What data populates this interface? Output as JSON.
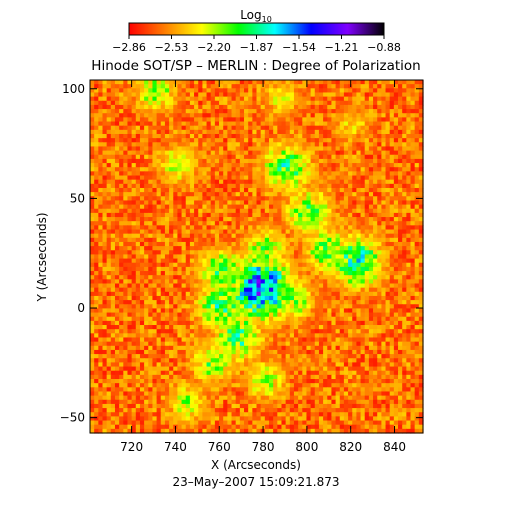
{
  "chart_data": {
    "type": "heatmap",
    "title": "Hinode SOT/SP – MERLIN : Degree of Polarization",
    "xlabel": "X (Arcseconds)",
    "ylabel": "Y (Arcseconds)",
    "timestamp": "23–May–2007 15:09:21.873",
    "xlim": [
      701,
      853
    ],
    "ylim": [
      -57,
      104
    ],
    "x_ticks": [
      {
        "value": 720,
        "label": "720"
      },
      {
        "value": 740,
        "label": "740"
      },
      {
        "value": 760,
        "label": "760"
      },
      {
        "value": 780,
        "label": "780"
      },
      {
        "value": 800,
        "label": "800"
      },
      {
        "value": 820,
        "label": "820"
      },
      {
        "value": 840,
        "label": "840"
      }
    ],
    "y_ticks": [
      {
        "value": -50,
        "label": "−50"
      },
      {
        "value": 0,
        "label": "0"
      },
      {
        "value": 50,
        "label": "50"
      },
      {
        "value": 100,
        "label": "100"
      }
    ],
    "colorbar": {
      "title_main": "Log",
      "title_sub": "10",
      "range": [
        -2.86,
        -0.88
      ],
      "ticks": [
        {
          "value": -2.86,
          "label": "−2.86"
        },
        {
          "value": -2.53,
          "label": "−2.53"
        },
        {
          "value": -2.2,
          "label": "−2.20"
        },
        {
          "value": -1.87,
          "label": "−1.87"
        },
        {
          "value": -1.54,
          "label": "−1.54"
        },
        {
          "value": -1.21,
          "label": "−1.21"
        },
        {
          "value": -0.88,
          "label": "−0.88"
        }
      ],
      "colors": [
        "#ff0000",
        "#ff7f00",
        "#ffff00",
        "#00ff00",
        "#00ffff",
        "#0000ff",
        "#8000ff",
        "#000000"
      ]
    },
    "features": [
      {
        "x": 790,
        "y": 65,
        "level": 0.55
      },
      {
        "x": 800,
        "y": 45,
        "level": 0.5
      },
      {
        "x": 822,
        "y": 22,
        "level": 0.62
      },
      {
        "x": 808,
        "y": 27,
        "level": 0.5
      },
      {
        "x": 780,
        "y": 28,
        "level": 0.45
      },
      {
        "x": 760,
        "y": 18,
        "level": 0.5
      },
      {
        "x": 760,
        "y": 2,
        "level": 0.55
      },
      {
        "x": 768,
        "y": -12,
        "level": 0.55
      },
      {
        "x": 756,
        "y": -24,
        "level": 0.45
      },
      {
        "x": 780,
        "y": -32,
        "level": 0.4
      },
      {
        "x": 745,
        "y": -42,
        "level": 0.4
      },
      {
        "x": 793,
        "y": 5,
        "level": 0.45
      },
      {
        "x": 778,
        "y": 10,
        "level": 0.82
      },
      {
        "x": 730,
        "y": 100,
        "level": 0.45
      },
      {
        "x": 740,
        "y": 66,
        "level": 0.4
      },
      {
        "x": 788,
        "y": 97,
        "level": 0.35
      },
      {
        "x": 820,
        "y": 85,
        "level": 0.3
      }
    ]
  }
}
